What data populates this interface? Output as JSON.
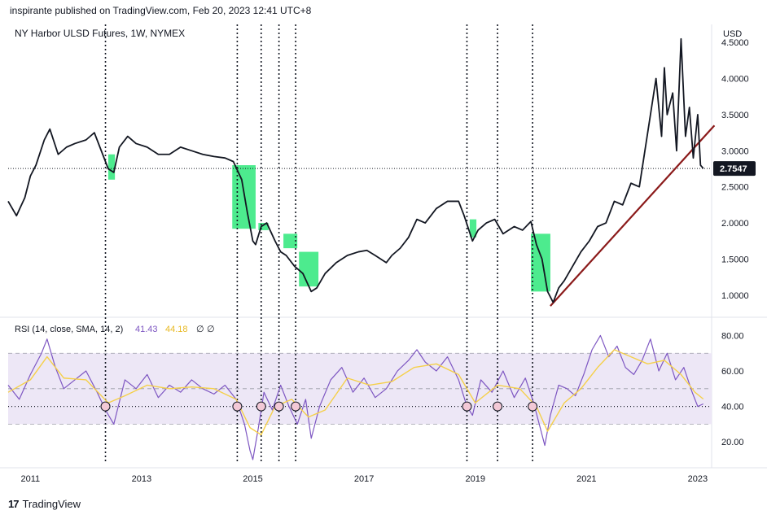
{
  "header": {
    "published": "inspirante published on TradingView.com, Feb 20, 2023 12:41 UTC+8"
  },
  "footer": {
    "brand": "TradingView",
    "logo_glyph": "17"
  },
  "colors": {
    "price_line": "#131722",
    "trendline": "#8b1a1a",
    "highlight": "#2ee87a",
    "rsi_line": "#7e57c2",
    "rsi_sma": "#f5d04a",
    "rsi_band": "#ede7f6",
    "price_tag_bg": "#131722"
  },
  "chart_data": [
    {
      "type": "line",
      "title": "NY Harbor ULSD Futures, 1W, NYMEX",
      "ylabel": "USD",
      "ylim": [
        0.75,
        4.75
      ],
      "yticks": [
        "4.5000",
        "4.0000",
        "3.5000",
        "3.0000",
        "2.5000",
        "2.0000",
        "1.5000",
        "1.0000"
      ],
      "ytick_values": [
        4.5,
        4.0,
        3.5,
        3.0,
        2.5,
        2.0,
        1.5,
        1.0
      ],
      "last_price": 2.7547,
      "last_price_label": "2.7547",
      "xlim": [
        2010.6,
        2023.25
      ],
      "xticks": [
        "2011",
        "2013",
        "2015",
        "2017",
        "2019",
        "2021",
        "2023"
      ],
      "xtick_values": [
        2011,
        2013,
        2015,
        2017,
        2019,
        2021,
        2023
      ],
      "series": [
        {
          "x": [
            2010.6,
            2010.75,
            2010.9,
            2011.0,
            2011.1,
            2011.25,
            2011.35,
            2011.5,
            2011.65,
            2011.8,
            2012.0,
            2012.15,
            2012.3,
            2012.4,
            2012.5,
            2012.6,
            2012.75,
            2012.9,
            2013.1,
            2013.3,
            2013.5,
            2013.7,
            2013.9,
            2014.1,
            2014.3,
            2014.5,
            2014.65,
            2014.8,
            2014.9,
            2015.0,
            2015.05,
            2015.15,
            2015.25,
            2015.4,
            2015.5,
            2015.6,
            2015.75,
            2015.9,
            2016.05,
            2016.15,
            2016.3,
            2016.5,
            2016.7,
            2016.9,
            2017.05,
            2017.2,
            2017.4,
            2017.5,
            2017.65,
            2017.8,
            2017.95,
            2018.1,
            2018.3,
            2018.5,
            2018.7,
            2018.8,
            2018.95,
            2019.05,
            2019.2,
            2019.35,
            2019.5,
            2019.7,
            2019.85,
            2020.0,
            2020.1,
            2020.2,
            2020.3,
            2020.4,
            2020.5,
            2020.6,
            2020.75,
            2020.9,
            2021.05,
            2021.2,
            2021.35,
            2021.5,
            2021.65,
            2021.8,
            2021.95,
            2022.05,
            2022.15,
            2022.25,
            2022.35,
            2022.4,
            2022.45,
            2022.55,
            2022.62,
            2022.7,
            2022.78,
            2022.85,
            2022.92,
            2023.0,
            2023.05,
            2023.1
          ],
          "y": [
            2.3,
            2.1,
            2.35,
            2.65,
            2.8,
            3.15,
            3.3,
            2.95,
            3.05,
            3.1,
            3.15,
            3.25,
            2.95,
            2.75,
            2.7,
            3.05,
            3.2,
            3.1,
            3.05,
            2.95,
            2.95,
            3.05,
            3.0,
            2.95,
            2.92,
            2.9,
            2.85,
            2.6,
            2.15,
            1.75,
            1.7,
            1.95,
            2.0,
            1.75,
            1.6,
            1.55,
            1.4,
            1.3,
            1.05,
            1.1,
            1.3,
            1.45,
            1.55,
            1.6,
            1.62,
            1.55,
            1.45,
            1.55,
            1.65,
            1.8,
            2.05,
            2.0,
            2.2,
            2.3,
            2.3,
            2.1,
            1.75,
            1.9,
            2.0,
            2.05,
            1.85,
            1.95,
            1.9,
            2.02,
            1.7,
            1.5,
            1.05,
            0.9,
            1.1,
            1.2,
            1.4,
            1.6,
            1.75,
            1.95,
            2.0,
            2.3,
            2.25,
            2.55,
            2.5,
            3.0,
            3.5,
            4.0,
            3.2,
            4.15,
            3.5,
            3.8,
            3.0,
            4.55,
            3.2,
            3.6,
            2.9,
            3.5,
            2.8,
            2.7547
          ]
        }
      ],
      "trendline": {
        "x": [
          2020.35,
          2023.3
        ],
        "y": [
          0.85,
          3.35
        ]
      },
      "highlight_boxes": [
        {
          "x0": 2012.4,
          "x1": 2012.52,
          "y0": 2.6,
          "y1": 2.95
        },
        {
          "x0": 2014.63,
          "x1": 2015.05,
          "y0": 1.92,
          "y1": 2.8
        },
        {
          "x0": 2015.1,
          "x1": 2015.28,
          "y0": 1.9,
          "y1": 2.0
        },
        {
          "x0": 2015.55,
          "x1": 2015.8,
          "y0": 1.65,
          "y1": 1.85
        },
        {
          "x0": 2015.83,
          "x1": 2016.18,
          "y0": 1.12,
          "y1": 1.6
        },
        {
          "x0": 2018.9,
          "x1": 2019.02,
          "y0": 1.8,
          "y1": 2.05
        },
        {
          "x0": 2020.0,
          "x1": 2020.35,
          "y0": 1.05,
          "y1": 1.85
        }
      ]
    },
    {
      "type": "line",
      "title": "RSI (14, close, SMA, 14, 2)",
      "legend_values": [
        "41.43",
        "44.18",
        "∅",
        "∅"
      ],
      "ylim": [
        10,
        88
      ],
      "yticks": [
        "80.00",
        "60.00",
        "40.00",
        "20.00"
      ],
      "ytick_values": [
        80,
        60,
        40,
        20
      ],
      "band": [
        30,
        70
      ],
      "midline": 50,
      "reference_level": 40,
      "series": [
        {
          "name": "RSI",
          "x": [
            2010.6,
            2010.8,
            2011.0,
            2011.2,
            2011.3,
            2011.45,
            2011.6,
            2011.8,
            2012.0,
            2012.2,
            2012.35,
            2012.5,
            2012.7,
            2012.9,
            2013.1,
            2013.3,
            2013.5,
            2013.7,
            2013.9,
            2014.1,
            2014.3,
            2014.5,
            2014.7,
            2014.85,
            2014.95,
            2015.0,
            2015.1,
            2015.2,
            2015.35,
            2015.5,
            2015.65,
            2015.8,
            2015.95,
            2016.05,
            2016.2,
            2016.4,
            2016.6,
            2016.8,
            2017.0,
            2017.2,
            2017.4,
            2017.6,
            2017.8,
            2017.95,
            2018.1,
            2018.3,
            2018.5,
            2018.7,
            2018.85,
            2018.95,
            2019.1,
            2019.3,
            2019.5,
            2019.7,
            2019.9,
            2020.05,
            2020.15,
            2020.25,
            2020.35,
            2020.5,
            2020.65,
            2020.8,
            2020.95,
            2021.1,
            2021.25,
            2021.4,
            2021.55,
            2021.7,
            2021.85,
            2022.0,
            2022.15,
            2022.3,
            2022.45,
            2022.6,
            2022.75,
            2022.9,
            2023.0,
            2023.1
          ],
          "values": [
            52,
            44,
            58,
            70,
            78,
            62,
            50,
            55,
            60,
            48,
            38,
            30,
            55,
            50,
            58,
            45,
            52,
            48,
            55,
            50,
            47,
            52,
            44,
            30,
            15,
            10,
            28,
            48,
            38,
            52,
            40,
            30,
            44,
            22,
            40,
            55,
            62,
            48,
            56,
            45,
            50,
            60,
            66,
            72,
            65,
            60,
            68,
            55,
            40,
            35,
            55,
            48,
            60,
            45,
            56,
            42,
            30,
            18,
            35,
            52,
            50,
            46,
            58,
            72,
            80,
            68,
            74,
            62,
            58,
            66,
            78,
            60,
            70,
            55,
            62,
            48,
            40,
            41.43
          ]
        },
        {
          "name": "SMA",
          "x": [
            2010.6,
            2011.0,
            2011.3,
            2011.6,
            2012.0,
            2012.4,
            2012.7,
            2013.1,
            2013.5,
            2013.9,
            2014.3,
            2014.7,
            2014.95,
            2015.15,
            2015.4,
            2015.7,
            2016.0,
            2016.3,
            2016.7,
            2017.1,
            2017.5,
            2017.9,
            2018.3,
            2018.7,
            2019.0,
            2019.4,
            2019.8,
            2020.1,
            2020.3,
            2020.6,
            2020.9,
            2021.2,
            2021.5,
            2021.8,
            2022.1,
            2022.4,
            2022.7,
            2022.95,
            2023.1
          ],
          "values": [
            48,
            55,
            68,
            56,
            55,
            42,
            46,
            52,
            50,
            51,
            50,
            44,
            28,
            24,
            40,
            44,
            34,
            38,
            56,
            52,
            54,
            62,
            64,
            58,
            42,
            52,
            50,
            40,
            26,
            42,
            50,
            62,
            72,
            68,
            64,
            66,
            58,
            48,
            44.18
          ]
        }
      ],
      "markers": [
        2012.35,
        2014.72,
        2015.15,
        2015.47,
        2015.77,
        2018.85,
        2019.4,
        2020.03
      ]
    }
  ],
  "vertical_markers": [
    2012.35,
    2014.72,
    2015.15,
    2015.47,
    2015.77,
    2018.85,
    2019.4,
    2020.03
  ]
}
